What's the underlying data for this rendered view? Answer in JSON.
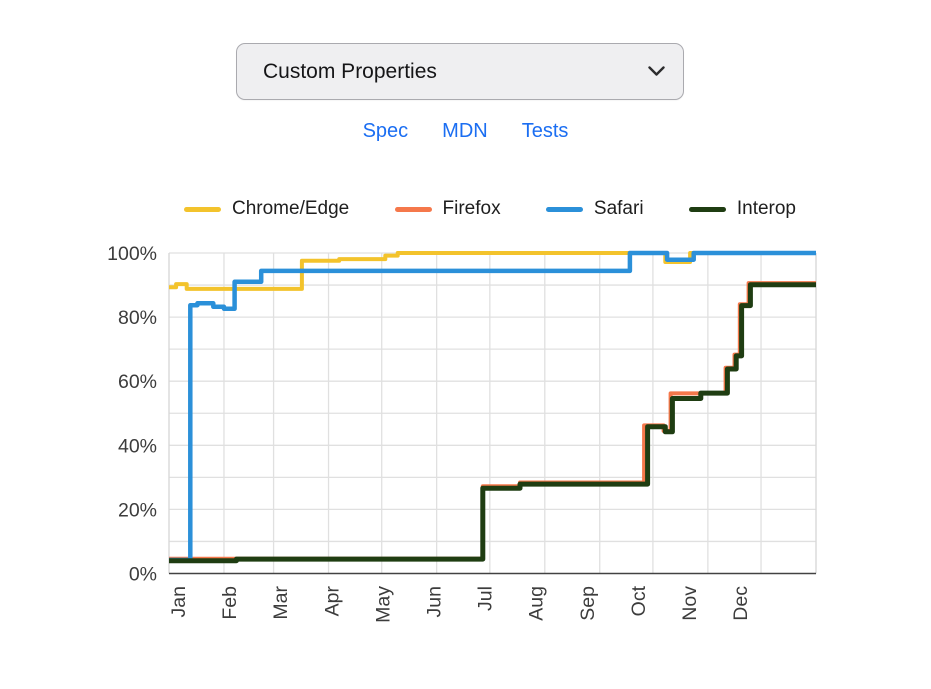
{
  "select": {
    "value": "Custom Properties"
  },
  "links": [
    {
      "label": "Spec"
    },
    {
      "label": "MDN"
    },
    {
      "label": "Tests"
    }
  ],
  "legend": [
    {
      "label": "Chrome/Edge",
      "color": "#F3C32C"
    },
    {
      "label": "Firefox",
      "color": "#F5784B"
    },
    {
      "label": "Safari",
      "color": "#2B90D9"
    },
    {
      "label": "Interop",
      "color": "#1F3D12"
    }
  ],
  "chart_data": {
    "type": "line",
    "title": "",
    "xlabel": "",
    "ylabel": "",
    "x_axis": {
      "unit": "day-of-year",
      "months": [
        "Jan",
        "Feb",
        "Mar",
        "Apr",
        "May",
        "Jun",
        "Jul",
        "Aug",
        "Sep",
        "Oct",
        "Nov",
        "Dec"
      ],
      "month_start_days": [
        0,
        31,
        59,
        90,
        120,
        151,
        181,
        212,
        243,
        273,
        304,
        334
      ]
    },
    "y_axis": {
      "range": [
        0,
        100
      ],
      "tick_labels": [
        "0%",
        "20%",
        "40%",
        "60%",
        "80%",
        "100%"
      ],
      "ticks": [
        0,
        20,
        40,
        60,
        80,
        100
      ],
      "grid_step": 10
    },
    "grid": true,
    "legend_position": "top",
    "interpolation": "step-after",
    "series": [
      {
        "name": "Chrome/Edge",
        "color": "#F3C32C",
        "width": 4,
        "points": [
          [
            0,
            89.3
          ],
          [
            4,
            90.3
          ],
          [
            10,
            88.8
          ],
          [
            75,
            97.6
          ],
          [
            96,
            98.1
          ],
          [
            122,
            99.2
          ],
          [
            129,
            100
          ],
          [
            280,
            97.2
          ],
          [
            294,
            100
          ],
          [
            364,
            100
          ]
        ]
      },
      {
        "name": "Firefox",
        "color": "#F5784B",
        "width": 4,
        "points": [
          [
            0,
            4.6
          ],
          [
            177,
            27.2
          ],
          [
            198,
            28.4
          ],
          [
            268,
            46.2
          ],
          [
            279,
            44.5
          ],
          [
            283,
            56.2
          ],
          [
            314,
            64.2
          ],
          [
            319,
            68.3
          ],
          [
            322,
            84.0
          ],
          [
            327,
            90.6
          ],
          [
            364,
            90.6
          ]
        ]
      },
      {
        "name": "Safari",
        "color": "#2B90D9",
        "width": 4.5,
        "points": [
          [
            0,
            4.2
          ],
          [
            12,
            83.7
          ],
          [
            16,
            84.3
          ],
          [
            25,
            83.2
          ],
          [
            31,
            82.6
          ],
          [
            37,
            91.0
          ],
          [
            52,
            94.4
          ],
          [
            260,
            100
          ],
          [
            281,
            97.9
          ],
          [
            296,
            100
          ],
          [
            364,
            100
          ]
        ]
      },
      {
        "name": "Interop",
        "color": "#1F3D12",
        "width": 5,
        "points": [
          [
            0,
            4.0
          ],
          [
            38,
            4.5
          ],
          [
            177,
            26.6
          ],
          [
            198,
            27.9
          ],
          [
            270,
            45.8
          ],
          [
            280,
            44.2
          ],
          [
            284,
            54.6
          ],
          [
            300,
            56.3
          ],
          [
            315,
            63.8
          ],
          [
            320,
            67.9
          ],
          [
            323,
            83.6
          ],
          [
            328,
            90.1
          ],
          [
            364,
            90.1
          ]
        ]
      }
    ]
  }
}
